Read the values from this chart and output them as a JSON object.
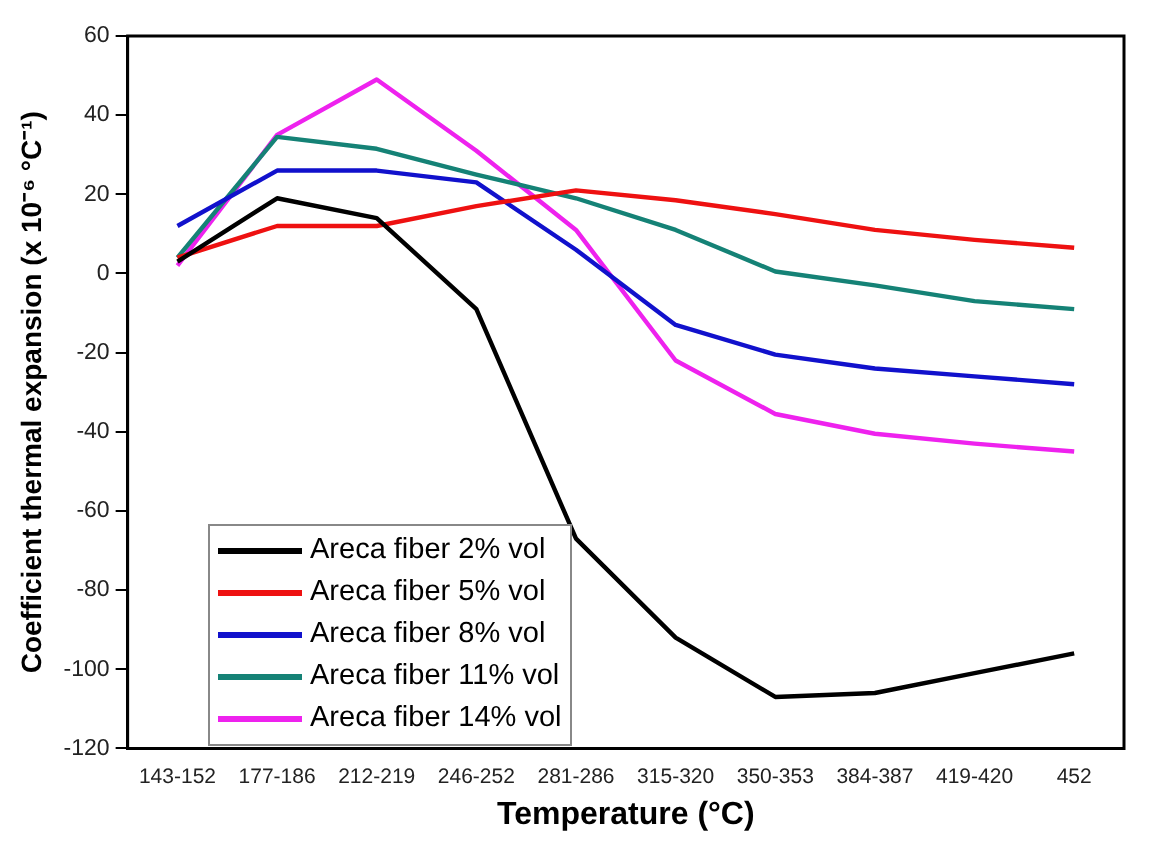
{
  "chart_data": {
    "type": "line",
    "xlabel": "Temperature (°C)",
    "ylabel": "Coefficient thermal expansion (x 10⁻⁶ °C⁻¹)",
    "categories": [
      "143-152",
      "177-186",
      "212-219",
      "246-252",
      "281-286",
      "315-320",
      "350-353",
      "384-387",
      "419-420",
      "452"
    ],
    "ylim": [
      -120,
      60
    ],
    "yticks": [
      -120,
      -100,
      -80,
      -60,
      -40,
      -20,
      0,
      20,
      40,
      60
    ],
    "grid": false,
    "legend": "bottom left",
    "marker": "none",
    "line_style": "solid",
    "series": [
      {
        "name": "Areca fiber 2% vol",
        "color": "#000000",
        "values": [
          3,
          19,
          14,
          -9,
          -67,
          -92,
          -107,
          -106,
          -101,
          -96
        ]
      },
      {
        "name": "Areca fiber 5% vol",
        "color": "#ee1111",
        "values": [
          4,
          12,
          12,
          17,
          21,
          18.5,
          15,
          11,
          8.5,
          6.5
        ]
      },
      {
        "name": "Areca fiber 8% vol",
        "color": "#1111cc",
        "values": [
          12,
          26,
          26,
          23,
          6,
          -13,
          -20.5,
          -24,
          -26,
          -28
        ]
      },
      {
        "name": "Areca fiber 11% vol",
        "color": "#158276",
        "values": [
          4,
          34.5,
          31.5,
          25,
          19,
          11,
          0.5,
          -3,
          -7,
          -9
        ]
      },
      {
        "name": "Areca fiber 14% vol",
        "color": "#ee22ee",
        "values": [
          2,
          35,
          49,
          31,
          11,
          -22,
          -35.5,
          -40.5,
          -43,
          -45
        ]
      }
    ]
  }
}
